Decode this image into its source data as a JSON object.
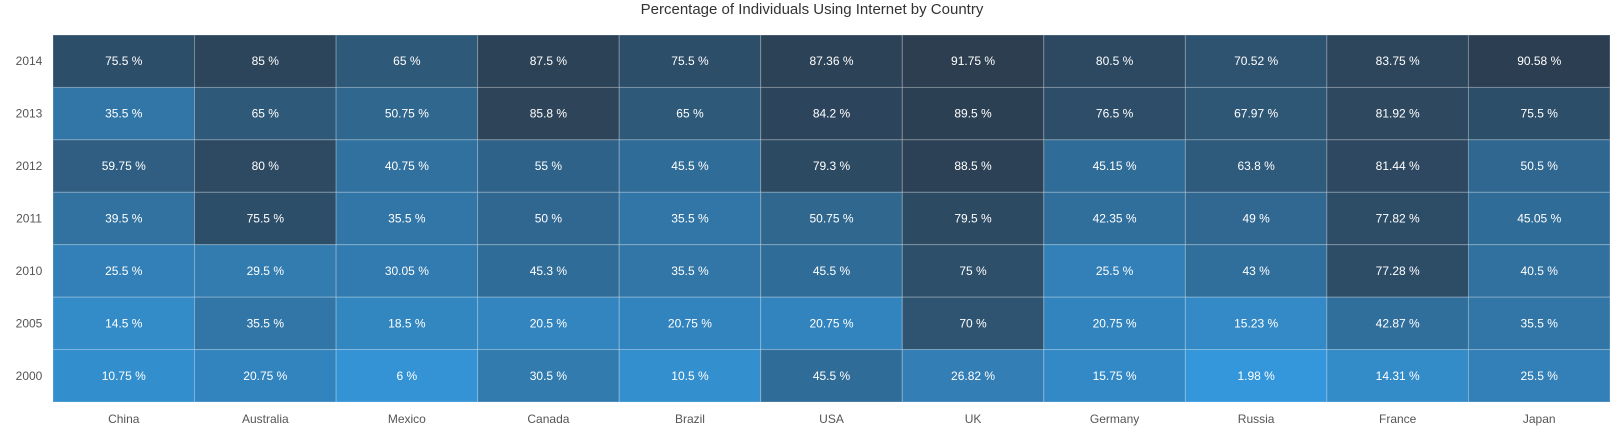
{
  "chart_data": {
    "type": "heatmap",
    "title": "Percentage of Individuals Using Internet by Country",
    "xlabel": "",
    "ylabel": "",
    "x_categories": [
      "China",
      "Australia",
      "Mexico",
      "Canada",
      "Brazil",
      "USA",
      "UK",
      "Germany",
      "Russia",
      "France",
      "Japan"
    ],
    "y_categories": [
      "2014",
      "2013",
      "2012",
      "2011",
      "2010",
      "2005",
      "2000"
    ],
    "value_suffix": " %",
    "values": [
      [
        75.5,
        85,
        65,
        87.5,
        75.5,
        87.36,
        91.75,
        80.5,
        70.52,
        83.75,
        90.58
      ],
      [
        35.5,
        65,
        50.75,
        85.8,
        65,
        84.2,
        89.5,
        76.5,
        67.97,
        81.92,
        75.5
      ],
      [
        59.75,
        80,
        40.75,
        55,
        45.5,
        79.3,
        88.5,
        45.15,
        63.8,
        81.44,
        50.5
      ],
      [
        39.5,
        75.5,
        35.5,
        50,
        35.5,
        50.75,
        79.5,
        42.35,
        49,
        77.82,
        45.05
      ],
      [
        25.5,
        29.5,
        30.05,
        45.3,
        35.5,
        45.5,
        75,
        25.5,
        43,
        77.28,
        40.5
      ],
      [
        14.5,
        35.5,
        18.5,
        20.5,
        20.75,
        20.75,
        70,
        20.75,
        15.23,
        42.87,
        35.5
      ],
      [
        10.75,
        20.75,
        6,
        30.5,
        10.5,
        45.5,
        26.82,
        15.75,
        1.98,
        14.31,
        25.5
      ]
    ],
    "color_range": {
      "low": "#3497db",
      "high": "#2c3e50"
    },
    "grid": true,
    "legend": "none"
  }
}
